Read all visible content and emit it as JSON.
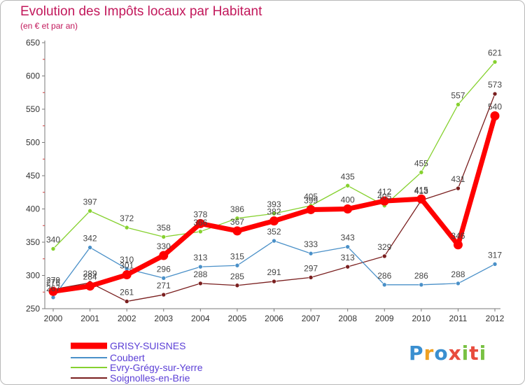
{
  "title": "Evolution des Impôts locaux par Habitant",
  "subtitle": "(en € et par an)",
  "logo": {
    "letters": [
      "P",
      "r",
      "o",
      "x",
      "i",
      "t",
      "i"
    ],
    "colors": [
      "#3a8fd0",
      "#f0a020",
      "#3a8fd0",
      "#e84c3d",
      "#79c143",
      "#e84c3d",
      "#79c143"
    ]
  },
  "chart_data": {
    "type": "line",
    "title": "Evolution des Impôts locaux par Habitant",
    "subtitle": "(en € et par an)",
    "x": [
      "2000",
      "2001",
      "2002",
      "2003",
      "2004",
      "2005",
      "2006",
      "2007",
      "2008",
      "2009",
      "2010",
      "2011",
      "2012"
    ],
    "ylim": [
      250,
      650
    ],
    "yticks": [
      250,
      300,
      350,
      400,
      450,
      500,
      550,
      600,
      650
    ],
    "grid": "none",
    "legend_position": "bottom-left",
    "series": [
      {
        "name": "GRISY-SUISNES",
        "color": "#ff0000",
        "values": [
          276,
          284,
          301,
          330,
          378,
          367,
          382,
          399,
          400,
          412,
          415,
          346,
          540
        ]
      },
      {
        "name": "Coubert",
        "color": "#4a90c8",
        "values": [
          267,
          342,
          310,
          296,
          313,
          315,
          352,
          333,
          343,
          286,
          286,
          288,
          317
        ]
      },
      {
        "name": "Evry-Grégy-sur-Yerre",
        "color": "#86d12f",
        "values": [
          340,
          397,
          372,
          358,
          366,
          386,
          393,
          405,
          435,
          405,
          455,
          557,
          621
        ]
      },
      {
        "name": "Soignolles-en-Brie",
        "color": "#7a1f1f",
        "values": [
          279,
          289,
          261,
          271,
          288,
          285,
          291,
          297,
          313,
          329,
          413,
          431,
          573
        ]
      }
    ],
    "labels": [
      [
        "276",
        "284",
        "301",
        "330",
        "378",
        "367",
        "382",
        "399",
        "400",
        "412",
        "415",
        "346",
        "540"
      ],
      [
        "267",
        "342",
        "310",
        "296",
        "313",
        "315",
        "352",
        "333",
        "343",
        "286",
        "286",
        "288",
        "317"
      ],
      [
        "340",
        "397",
        "372",
        "358",
        "366",
        "386",
        "393",
        "405",
        "435",
        "405",
        "455",
        "557",
        "621"
      ],
      [
        "279",
        "289",
        "261",
        "271",
        "288",
        "285",
        "291",
        "297",
        "313",
        "329",
        "413",
        "431",
        "573"
      ]
    ]
  }
}
